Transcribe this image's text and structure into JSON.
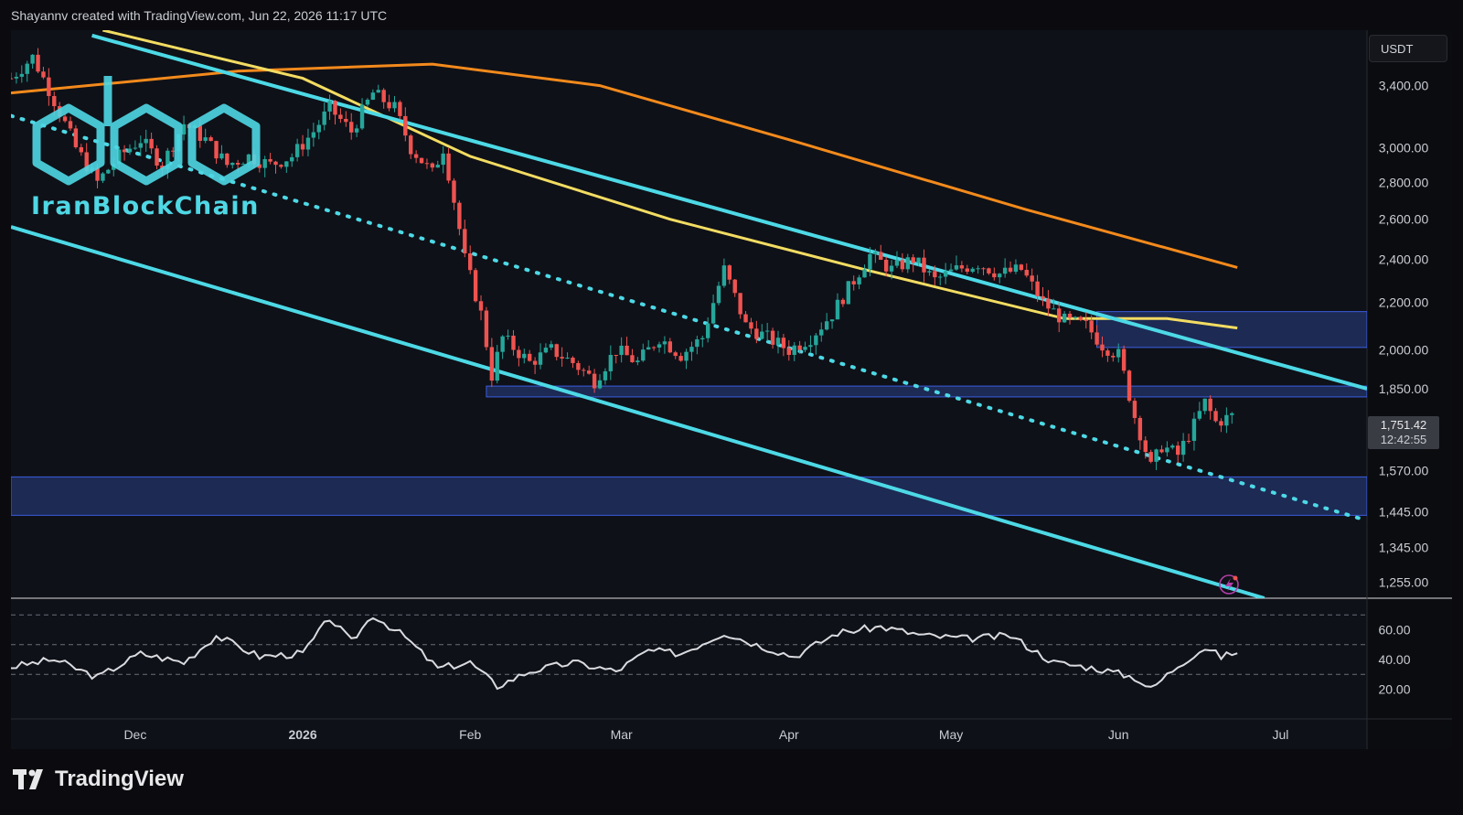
{
  "header": {
    "text": "Shayannv created with TradingView.com, Jun 22, 2026 11:17 UTC"
  },
  "currency": "USDT",
  "brand": {
    "name": "TradingView"
  },
  "watermark": {
    "text": "IranBlockChain"
  },
  "last_price": {
    "value": "1,751.42",
    "countdown": "12:42:55"
  },
  "colors": {
    "background": "#0f1118",
    "up": "#26a69a",
    "down": "#ef5350",
    "channel": "#4dd9e6",
    "ma_yellow": "#f2dc62",
    "ma_orange": "#f38a1c",
    "zone": "#2a3f86",
    "rsi": "#d9dbe0"
  },
  "chart_data": [
    {
      "type": "candlestick",
      "title": "",
      "y_scale": "log",
      "y_ticks": [
        "3,400.00",
        "3,000.00",
        "2,800.00",
        "2,600.00",
        "2,400.00",
        "2,200.00",
        "2,000.00",
        "1,850.00",
        "1,570.00",
        "1,445.00",
        "1,345.00",
        "1,255.00"
      ],
      "y_tick_values": [
        3400,
        3000,
        2800,
        2600,
        2400,
        2200,
        2000,
        1850,
        1570,
        1445,
        1345,
        1255
      ],
      "x_ticks": [
        "Dec",
        "2026",
        "Feb",
        "Mar",
        "Apr",
        "May",
        "Jun",
        "Jul"
      ],
      "x_tick_dates": [
        "2025-12-01",
        "2026-01-01",
        "2026-02-01",
        "2026-03-01",
        "2026-04-01",
        "2026-05-01",
        "2026-06-01",
        "2026-07-01"
      ],
      "x_range": [
        "2025-11-08",
        "2026-07-17"
      ],
      "y_range": [
        1215,
        3800
      ],
      "price_path": [
        [
          "2025-11-08",
          3450
        ],
        [
          "2025-11-12",
          3600
        ],
        [
          "2025-11-16",
          3300
        ],
        [
          "2025-11-20",
          3000
        ],
        [
          "2025-11-24",
          2800
        ],
        [
          "2025-11-28",
          2950
        ],
        [
          "2025-12-02",
          3050
        ],
        [
          "2025-12-06",
          2900
        ],
        [
          "2025-12-10",
          3150
        ],
        [
          "2025-12-14",
          3050
        ],
        [
          "2025-12-18",
          2900
        ],
        [
          "2025-12-22",
          2950
        ],
        [
          "2025-12-26",
          2900
        ],
        [
          "2025-12-30",
          2950
        ],
        [
          "2026-01-03",
          3100
        ],
        [
          "2026-01-06",
          3250
        ],
        [
          "2026-01-10",
          3100
        ],
        [
          "2026-01-14",
          3350
        ],
        [
          "2026-01-18",
          3250
        ],
        [
          "2026-01-21",
          3000
        ],
        [
          "2026-01-25",
          2850
        ],
        [
          "2026-01-27",
          3000
        ],
        [
          "2026-01-29",
          2700
        ],
        [
          "2026-01-31",
          2400
        ],
        [
          "2026-02-03",
          2150
        ],
        [
          "2026-02-05",
          1900
        ],
        [
          "2026-02-07",
          2050
        ],
        [
          "2026-02-12",
          1950
        ],
        [
          "2026-02-16",
          2000
        ],
        [
          "2026-02-20",
          1950
        ],
        [
          "2026-02-24",
          1880
        ],
        [
          "2026-02-28",
          2000
        ],
        [
          "2026-03-04",
          1950
        ],
        [
          "2026-03-08",
          2050
        ],
        [
          "2026-03-12",
          1980
        ],
        [
          "2026-03-16",
          2050
        ],
        [
          "2026-03-20",
          2350
        ],
        [
          "2026-03-24",
          2100
        ],
        [
          "2026-03-28",
          2050
        ],
        [
          "2026-04-01",
          2000
        ],
        [
          "2026-04-05",
          2050
        ],
        [
          "2026-04-09",
          2150
        ],
        [
          "2026-04-13",
          2300
        ],
        [
          "2026-04-16",
          2420
        ],
        [
          "2026-04-20",
          2350
        ],
        [
          "2026-04-24",
          2400
        ],
        [
          "2026-04-28",
          2300
        ],
        [
          "2026-05-02",
          2350
        ],
        [
          "2026-05-06",
          2380
        ],
        [
          "2026-05-10",
          2330
        ],
        [
          "2026-05-14",
          2350
        ],
        [
          "2026-05-18",
          2200
        ],
        [
          "2026-05-22",
          2120
        ],
        [
          "2026-05-26",
          2100
        ],
        [
          "2026-05-29",
          2020
        ],
        [
          "2026-06-01",
          1980
        ],
        [
          "2026-06-04",
          1750
        ],
        [
          "2026-06-07",
          1580
        ],
        [
          "2026-06-09",
          1650
        ],
        [
          "2026-06-12",
          1620
        ],
        [
          "2026-06-15",
          1720
        ],
        [
          "2026-06-17",
          1800
        ],
        [
          "2026-06-19",
          1730
        ],
        [
          "2026-06-22",
          1751
        ]
      ],
      "channel_upper": [
        [
          "2025-11-23",
          3760
        ],
        [
          "2026-07-17",
          1850
        ]
      ],
      "channel_lower": [
        [
          "2025-11-08",
          2560
        ],
        [
          "2026-06-28",
          1215
        ]
      ],
      "channel_mid_dotted": [
        [
          "2025-11-08",
          3200
        ],
        [
          "2026-07-17",
          1420
        ]
      ],
      "ma_200": [
        [
          "2025-11-08",
          3350
        ],
        [
          "2025-12-20",
          3500
        ],
        [
          "2026-01-25",
          3550
        ],
        [
          "2026-02-25",
          3400
        ],
        [
          "2026-04-01",
          3050
        ],
        [
          "2026-05-15",
          2650
        ],
        [
          "2026-06-23",
          2360
        ]
      ],
      "ma_100": [
        [
          "2025-11-25",
          3800
        ],
        [
          "2026-01-01",
          3450
        ],
        [
          "2026-02-01",
          2950
        ],
        [
          "2026-03-10",
          2600
        ],
        [
          "2026-04-15",
          2350
        ],
        [
          "2026-05-22",
          2130
        ],
        [
          "2026-06-10",
          2130
        ],
        [
          "2026-06-23",
          2090
        ]
      ],
      "zones": [
        {
          "from_date": "2026-05-28",
          "to_date": "2026-07-17",
          "low": 2010,
          "high": 2160
        },
        {
          "from_date": "2026-02-04",
          "to_date": "2026-07-17",
          "low": 1820,
          "high": 1860
        },
        {
          "from_date": "2025-11-08",
          "to_date": "2026-07-17",
          "low": 1435,
          "high": 1550
        }
      ]
    },
    {
      "type": "line",
      "title": "",
      "y_ticks": [
        "60.00",
        "40.00",
        "20.00"
      ],
      "y_tick_values": [
        60,
        40,
        20
      ],
      "y_range": [
        0,
        80
      ],
      "guide_levels": [
        70,
        50,
        30
      ],
      "rsi_path": [
        [
          "2025-11-08",
          35
        ],
        [
          "2025-11-16",
          40
        ],
        [
          "2025-11-24",
          28
        ],
        [
          "2025-12-02",
          44
        ],
        [
          "2025-12-10",
          38
        ],
        [
          "2025-12-16",
          56
        ],
        [
          "2025-12-24",
          42
        ],
        [
          "2026-01-01",
          44
        ],
        [
          "2026-01-06",
          68
        ],
        [
          "2026-01-10",
          52
        ],
        [
          "2026-01-14",
          70
        ],
        [
          "2026-01-20",
          55
        ],
        [
          "2026-01-26",
          34
        ],
        [
          "2026-02-01",
          38
        ],
        [
          "2026-02-06",
          22
        ],
        [
          "2026-02-12",
          32
        ],
        [
          "2026-02-20",
          38
        ],
        [
          "2026-02-28",
          32
        ],
        [
          "2026-03-06",
          46
        ],
        [
          "2026-03-12",
          44
        ],
        [
          "2026-03-20",
          58
        ],
        [
          "2026-03-26",
          50
        ],
        [
          "2026-04-02",
          42
        ],
        [
          "2026-04-10",
          58
        ],
        [
          "2026-04-18",
          62
        ],
        [
          "2026-04-26",
          56
        ],
        [
          "2026-05-04",
          54
        ],
        [
          "2026-05-12",
          56
        ],
        [
          "2026-05-20",
          38
        ],
        [
          "2026-05-28",
          34
        ],
        [
          "2026-06-04",
          28
        ],
        [
          "2026-06-07",
          20
        ],
        [
          "2026-06-12",
          36
        ],
        [
          "2026-06-17",
          48
        ],
        [
          "2026-06-20",
          42
        ],
        [
          "2026-06-23",
          45
        ]
      ]
    }
  ]
}
